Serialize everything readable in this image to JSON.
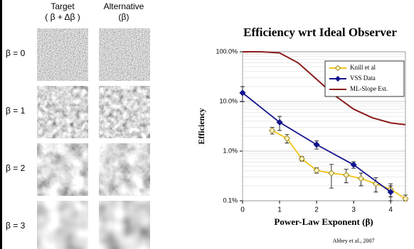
{
  "panel": {
    "col_titles": [
      "Target",
      "Alternative"
    ],
    "col_subtitles": [
      "( β + Δβ )",
      "(β)"
    ],
    "row_labels": [
      "β = 0",
      "β = 1",
      "β = 2",
      "β = 3"
    ]
  },
  "chart_data": {
    "type": "line",
    "title": "Efficiency wrt Ideal Observer",
    "x_label": "Power-Law Exponent (β)",
    "y_label": "Efficiency",
    "annotation": "Abbey et al., 2007",
    "log_y": true,
    "grid": true,
    "legend": "top-right",
    "xlim": [
      0,
      4.4
    ],
    "xticks": [
      0,
      1,
      2,
      3,
      4
    ],
    "ylim": [
      0.1,
      100
    ],
    "yticks": [
      {
        "value": 0.1,
        "label": "0.1%"
      },
      {
        "value": 1,
        "label": "1.0%"
      },
      {
        "value": 10,
        "label": "10.0%"
      },
      {
        "value": 100,
        "label": "100.0%"
      }
    ],
    "series": [
      {
        "name": "Knill et al",
        "color": "#f0c419",
        "marker": "open-diamond",
        "x": [
          0.8,
          1.2,
          1.6,
          2.0,
          2.4,
          2.8,
          3.2,
          3.6,
          4.0,
          4.4
        ],
        "values": [
          2.6,
          1.8,
          0.7,
          0.41,
          0.36,
          0.33,
          0.28,
          0.22,
          0.17,
          0.11
        ],
        "errors": [
          0.4,
          0.35,
          0.07,
          0.05,
          0.18,
          0.1,
          0.08,
          0.07,
          0.05,
          0.02
        ]
      },
      {
        "name": "VSS Data",
        "color": "#14148c",
        "marker": "diamond",
        "x": [
          0,
          1,
          2,
          3,
          4
        ],
        "values": [
          14.9,
          3.8,
          1.35,
          0.53,
          0.15
        ],
        "errors": [
          5,
          1.2,
          0.25,
          0.08,
          0.05
        ]
      },
      {
        "name": "ML-Slope Est.",
        "color": "#8b1a1a",
        "marker": "none",
        "x": [
          0,
          0.5,
          1,
          1.5,
          2,
          2.5,
          3,
          3.5,
          4,
          4.4
        ],
        "values": [
          100,
          100,
          95,
          60,
          28,
          13,
          7,
          4.7,
          3.7,
          3.4
        ]
      }
    ]
  }
}
